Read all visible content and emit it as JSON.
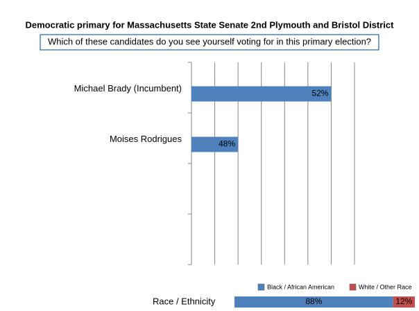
{
  "chart_data": [
    {
      "type": "hbar",
      "title": "Democratic primary for Massachusetts State Senate 2nd Plymouth and Bristol District",
      "subtitle": "Which of these candidates do you see yourself voting for in this primary election?",
      "categories": [
        "Michael Brady (Incumbent)",
        "Moises Rodrigues",
        null,
        null
      ],
      "values": [
        52,
        48,
        null,
        null
      ],
      "value_labels": [
        "52%",
        "48%",
        null,
        null
      ],
      "color": "#4f81bd",
      "xlim": [
        46,
        53
      ],
      "xgrid": [
        46,
        47,
        48,
        49,
        50,
        51,
        52,
        53
      ],
      "grid": true
    },
    {
      "type": "stacked_hbar",
      "categories": [
        "Race / Ethnicity"
      ],
      "series": [
        {
          "name": "Black / African American",
          "color": "#4f81bd",
          "values": [
            88
          ],
          "value_labels": [
            "88%"
          ]
        },
        {
          "name": "White / Other Race",
          "color": "#c0504d",
          "values": [
            12
          ],
          "value_labels": [
            "12%"
          ]
        }
      ],
      "xlim": [
        0,
        100
      ]
    }
  ]
}
